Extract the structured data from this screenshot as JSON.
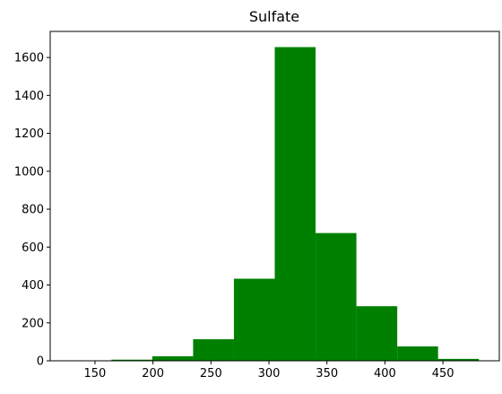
{
  "chart_data": {
    "type": "bar",
    "title": "Sulfate",
    "xlabel": "",
    "ylabel": "",
    "bin_edges": [
      129.0,
      164.2,
      199.4,
      234.6,
      269.8,
      305.0,
      340.2,
      375.4,
      410.6,
      445.8,
      481.0
    ],
    "values": [
      2,
      6,
      24,
      114,
      433,
      1655,
      674,
      288,
      76,
      10
    ],
    "xlim": [
      111.4,
      498.6
    ],
    "ylim": [
      0,
      1737.75
    ],
    "x_ticks": [
      150,
      200,
      250,
      300,
      350,
      400,
      450
    ],
    "y_ticks": [
      0,
      200,
      400,
      600,
      800,
      1000,
      1200,
      1400,
      1600
    ],
    "bar_color": "#008000",
    "grid": false,
    "legend": "none"
  }
}
